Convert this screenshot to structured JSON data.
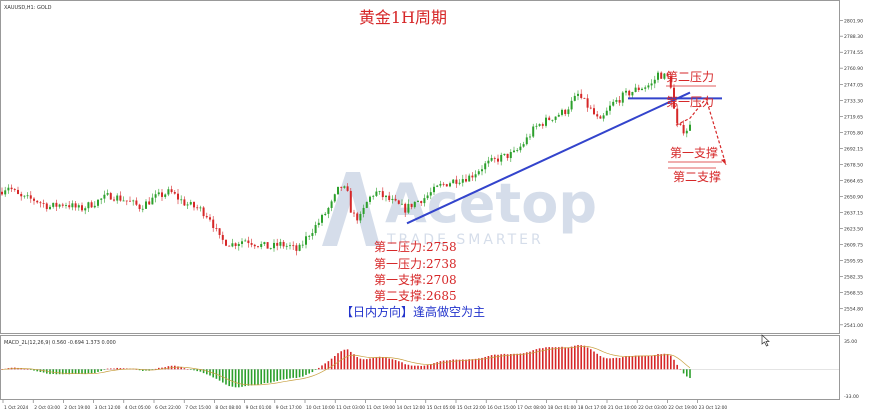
{
  "window": {
    "symbol_label": "XAUUSD,H1: GOLD",
    "indicator_label": "MACD_2L(12,26,9) 0.560 -0.694 1.373 0.000"
  },
  "title": "黄金1H周期",
  "watermark": {
    "brand": "Acetop",
    "tagline": "TRADE SMARTER"
  },
  "annotations": {
    "resistance_2": "第二压力",
    "resistance_1": "第一压力",
    "support_1": "第一支撑",
    "support_2": "第二支撑"
  },
  "levels_text": [
    "第二压力:2758",
    "第一压力:2738",
    "第一支撑:2708",
    "第二支撑:2685"
  ],
  "strategy_text": "【日内方向】逢高做空为主",
  "colors": {
    "bull": "#2ca02c",
    "bear": "#d62728",
    "trendline": "#3344cc",
    "annotation": "#d62728",
    "macd_signal": "#c8a040"
  },
  "chart_data": {
    "type": "candlestick",
    "price_axis": {
      "min": 2540,
      "max": 2815,
      "ticks": [
        2801.9,
        2788.3,
        2774.55,
        2760.9,
        2747.05,
        2733.3,
        2719.65,
        2705.8,
        2692.15,
        2678.5,
        2664.65,
        2650.9,
        2637.15,
        2623.5,
        2609.75,
        2595.95,
        2582.35,
        2568.55,
        2554.8,
        2541.0
      ],
      "tick_labels": [
        "2801.90",
        "2788.30",
        "2774.55",
        "2760.90",
        "2747.05",
        "2733.30",
        "2719.65",
        "2705.80",
        "2692.15",
        "2678.50",
        "2664.65",
        "2650.90",
        "2637.15",
        "2623.50",
        "2609.75",
        "2595.95",
        "2582.35",
        "2568.55",
        "2554.80",
        "2541.00"
      ]
    },
    "time_axis_labels": [
      "1 Oct 2024",
      "2 Oct 03:00",
      "2 Oct 19:00",
      "3 Oct 12:00",
      "4 Oct 05:00",
      "6 Oct 22:00",
      "7 Oct 15:00",
      "8 Oct 08:00",
      "9 Oct 01:00",
      "9 Oct 17:00",
      "10 Oct 10:00",
      "11 Oct 03:00",
      "11 Oct 19:00",
      "14 Oct 12:00",
      "15 Oct 05:00",
      "15 Oct 22:00",
      "16 Oct 15:00",
      "17 Oct 08:00",
      "18 Oct 01:00",
      "18 Oct 17:00",
      "21 Oct 10:00",
      "22 Oct 03:00",
      "22 Oct 19:00",
      "23 Oct 12:00"
    ],
    "price_path": [
      [
        0,
        2655
      ],
      [
        8,
        2660
      ],
      [
        20,
        2650
      ],
      [
        35,
        2648
      ],
      [
        50,
        2642
      ],
      [
        65,
        2645
      ],
      [
        80,
        2640
      ],
      [
        95,
        2646
      ],
      [
        110,
        2652
      ],
      [
        125,
        2648
      ],
      [
        140,
        2642
      ],
      [
        155,
        2650
      ],
      [
        170,
        2655
      ],
      [
        185,
        2645
      ],
      [
        200,
        2640
      ],
      [
        210,
        2633
      ],
      [
        220,
        2614
      ],
      [
        232,
        2610
      ],
      [
        245,
        2614
      ],
      [
        258,
        2610
      ],
      [
        270,
        2607
      ],
      [
        280,
        2610
      ],
      [
        290,
        2608
      ],
      [
        298,
        2604
      ],
      [
        308,
        2618
      ],
      [
        320,
        2630
      ],
      [
        332,
        2645
      ],
      [
        340,
        2660
      ],
      [
        347,
        2655
      ],
      [
        352,
        2635
      ],
      [
        360,
        2632
      ],
      [
        368,
        2648
      ],
      [
        375,
        2655
      ],
      [
        385,
        2650
      ],
      [
        395,
        2645
      ],
      [
        405,
        2640
      ],
      [
        415,
        2646
      ],
      [
        425,
        2650
      ],
      [
        440,
        2660
      ],
      [
        455,
        2665
      ],
      [
        470,
        2668
      ],
      [
        485,
        2678
      ],
      [
        500,
        2684
      ],
      [
        515,
        2688
      ],
      [
        525,
        2698
      ],
      [
        535,
        2710
      ],
      [
        550,
        2718
      ],
      [
        565,
        2724
      ],
      [
        578,
        2738
      ],
      [
        590,
        2726
      ],
      [
        600,
        2714
      ],
      [
        612,
        2730
      ],
      [
        625,
        2738
      ],
      [
        640,
        2744
      ],
      [
        652,
        2747
      ],
      [
        658,
        2756
      ],
      [
        664,
        2754
      ],
      [
        670,
        2752
      ],
      [
        676,
        2712
      ],
      [
        682,
        2708
      ],
      [
        688,
        2709
      ],
      [
        693,
        2714
      ]
    ],
    "macd_range": [
      -33.0,
      35.0
    ],
    "macd_tick_labels": [
      "35.00",
      "-33.00"
    ],
    "trendline_1": {
      "from": [
        407,
        2628
      ],
      "to": [
        690,
        2740
      ]
    },
    "resistance_line": {
      "from": [
        628,
        2735
      ],
      "to": [
        722,
        2735
      ]
    },
    "projection": [
      [
        676,
        2712
      ],
      [
        690,
        2718
      ],
      [
        706,
        2735
      ],
      [
        726,
        2678
      ]
    ]
  }
}
